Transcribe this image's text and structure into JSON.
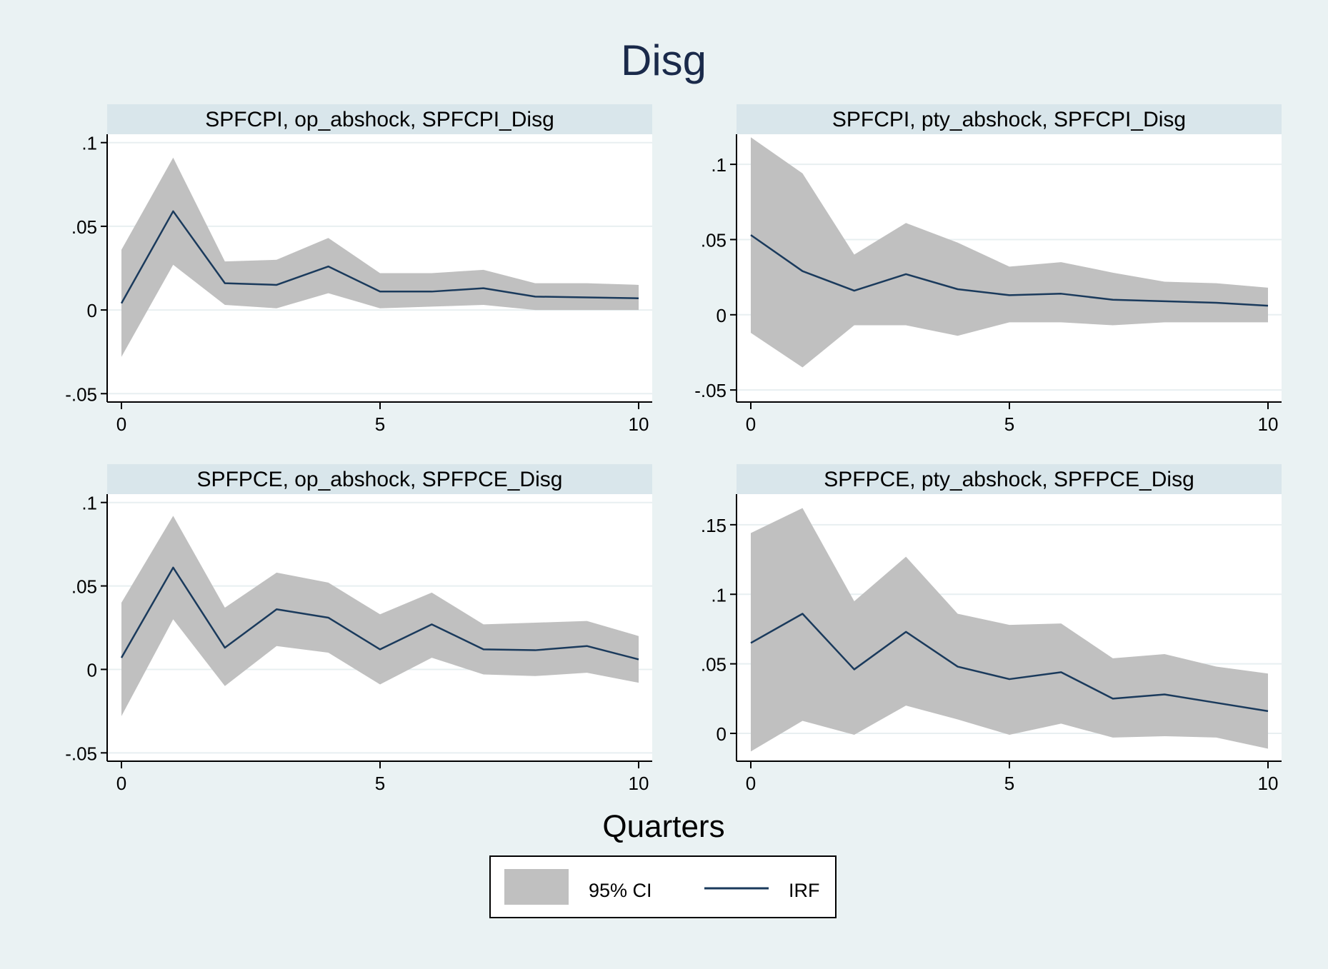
{
  "figure": {
    "title": "Disg",
    "xlabel": "Quarters"
  },
  "legend": {
    "placement": "bottom-center",
    "items": [
      {
        "label": "95% CI",
        "kind": "band",
        "color": "#c0c0c0"
      },
      {
        "label": "IRF",
        "kind": "line",
        "color": "#1a3a5c"
      }
    ]
  },
  "colors": {
    "background": "#eaf2f3",
    "panel_background": "#ffffff",
    "panel_header": "#d9e6eb",
    "band": "#c0c0c0",
    "line": "#1a3a5c",
    "grid": "#e8eff1",
    "axis": "#000000"
  },
  "chart_data": [
    {
      "type": "line",
      "title": "SPFCPI, op_abshock, SPFCPI_Disg",
      "x": [
        0,
        1,
        2,
        3,
        4,
        5,
        6,
        7,
        8,
        9,
        10
      ],
      "xticks": [
        0,
        5,
        10
      ],
      "xlim": [
        0,
        10
      ],
      "ylim": [
        -0.055,
        0.105
      ],
      "yticks": [
        -0.05,
        0,
        0.05,
        0.1
      ],
      "ytick_labels": [
        "-.05",
        "0",
        ".05",
        ".1"
      ],
      "grid": true,
      "series": [
        {
          "name": "IRF",
          "values": [
            0.004,
            0.059,
            0.016,
            0.015,
            0.026,
            0.011,
            0.011,
            0.013,
            0.008,
            0.0075,
            0.007
          ]
        },
        {
          "name": "95% CI",
          "lower": [
            -0.028,
            0.027,
            0.003,
            0.001,
            0.01,
            0.001,
            0.002,
            0.003,
            0.0,
            0.0,
            0.0
          ],
          "upper": [
            0.036,
            0.091,
            0.029,
            0.03,
            0.043,
            0.022,
            0.022,
            0.024,
            0.016,
            0.016,
            0.015
          ]
        }
      ]
    },
    {
      "type": "line",
      "title": "SPFCPI, pty_abshock, SPFCPI_Disg",
      "x": [
        0,
        1,
        2,
        3,
        4,
        5,
        6,
        7,
        8,
        9,
        10
      ],
      "xticks": [
        0,
        5,
        10
      ],
      "xlim": [
        0,
        10
      ],
      "ylim": [
        -0.058,
        0.12
      ],
      "yticks": [
        -0.05,
        0,
        0.05,
        0.1
      ],
      "ytick_labels": [
        "-.05",
        "0",
        ".05",
        ".1"
      ],
      "grid": true,
      "series": [
        {
          "name": "IRF",
          "values": [
            0.053,
            0.029,
            0.016,
            0.027,
            0.017,
            0.013,
            0.014,
            0.01,
            0.009,
            0.008,
            0.006
          ]
        },
        {
          "name": "95% CI",
          "lower": [
            -0.012,
            -0.035,
            -0.007,
            -0.007,
            -0.014,
            -0.005,
            -0.005,
            -0.007,
            -0.005,
            -0.005,
            -0.005
          ],
          "upper": [
            0.118,
            0.094,
            0.04,
            0.061,
            0.048,
            0.032,
            0.035,
            0.028,
            0.022,
            0.021,
            0.018
          ]
        }
      ]
    },
    {
      "type": "line",
      "title": "SPFPCE, op_abshock, SPFPCE_Disg",
      "x": [
        0,
        1,
        2,
        3,
        4,
        5,
        6,
        7,
        8,
        9,
        10
      ],
      "xticks": [
        0,
        5,
        10
      ],
      "xlim": [
        0,
        10
      ],
      "ylim": [
        -0.055,
        0.105
      ],
      "yticks": [
        -0.05,
        0,
        0.05,
        0.1
      ],
      "ytick_labels": [
        "-.05",
        "0",
        ".05",
        ".1"
      ],
      "grid": true,
      "series": [
        {
          "name": "IRF",
          "values": [
            0.007,
            0.061,
            0.013,
            0.036,
            0.031,
            0.012,
            0.027,
            0.012,
            0.0115,
            0.014,
            0.006
          ]
        },
        {
          "name": "95% CI",
          "lower": [
            -0.028,
            0.03,
            -0.01,
            0.014,
            0.01,
            -0.009,
            0.007,
            -0.003,
            -0.004,
            -0.002,
            -0.008
          ],
          "upper": [
            0.04,
            0.092,
            0.037,
            0.058,
            0.052,
            0.033,
            0.046,
            0.027,
            0.028,
            0.029,
            0.02
          ]
        }
      ]
    },
    {
      "type": "line",
      "title": "SPFPCE, pty_abshock, SPFPCE_Disg",
      "x": [
        0,
        1,
        2,
        3,
        4,
        5,
        6,
        7,
        8,
        9,
        10
      ],
      "xticks": [
        0,
        5,
        10
      ],
      "xlim": [
        0,
        10
      ],
      "ylim": [
        -0.02,
        0.172
      ],
      "yticks": [
        0,
        0.05,
        0.1,
        0.15
      ],
      "ytick_labels": [
        "0",
        ".05",
        ".1",
        ".15"
      ],
      "grid": true,
      "series": [
        {
          "name": "IRF",
          "values": [
            0.065,
            0.086,
            0.046,
            0.073,
            0.048,
            0.039,
            0.044,
            0.025,
            0.028,
            0.022,
            0.016
          ]
        },
        {
          "name": "95% CI",
          "lower": [
            -0.013,
            0.009,
            -0.001,
            0.02,
            0.01,
            -0.001,
            0.007,
            -0.003,
            -0.002,
            -0.003,
            -0.011
          ],
          "upper": [
            0.144,
            0.162,
            0.095,
            0.127,
            0.086,
            0.078,
            0.079,
            0.054,
            0.057,
            0.048,
            0.043
          ]
        }
      ]
    }
  ]
}
